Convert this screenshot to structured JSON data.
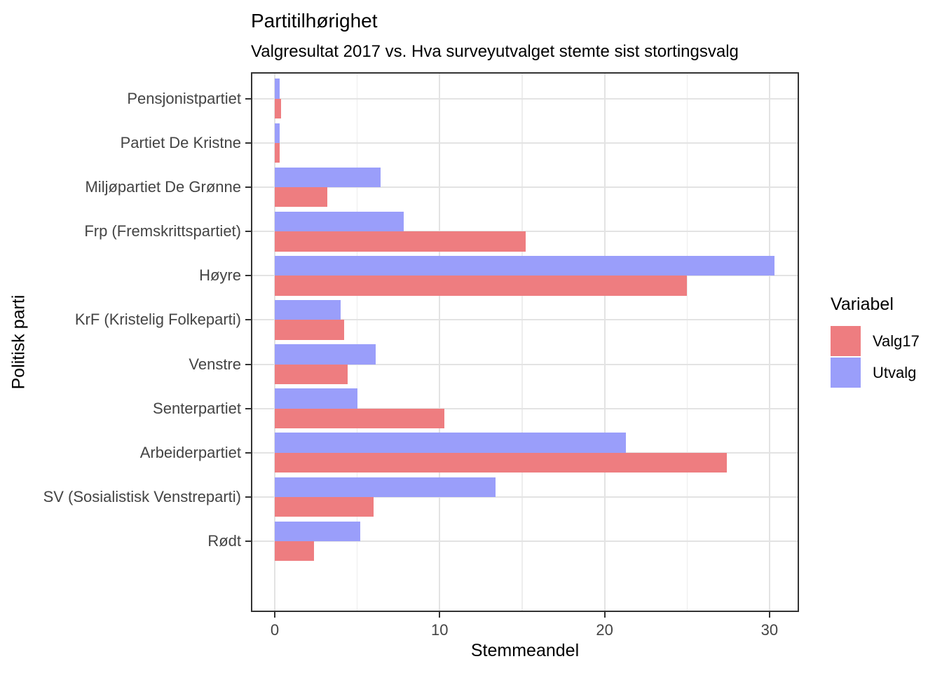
{
  "chart_data": {
    "type": "bar",
    "orientation": "horizontal",
    "title": "Partitilhørighet",
    "subtitle": "Valgresultat 2017 vs. Hva surveyutvalget stemte sist stortingsvalg",
    "xlabel": "Stemmeandel",
    "ylabel": "Politisk parti",
    "categories": [
      "Pensjonistpartiet",
      "Partiet De Kristne",
      "Miljøpartiet De Grønne",
      "Frp (Fremskrittspartiet)",
      "Høyre",
      "KrF (Kristelig Folkeparti)",
      "Venstre",
      "Senterpartiet",
      "Arbeiderpartiet",
      "SV (Sosialistisk Venstreparti)",
      "Rødt"
    ],
    "series": [
      {
        "name": "Valg17",
        "color": "#EE7D80",
        "values": [
          0.4,
          0.3,
          3.2,
          15.2,
          25.0,
          4.2,
          4.4,
          10.3,
          27.4,
          6.0,
          2.4
        ]
      },
      {
        "name": "Utvalg",
        "color": "#9A9EFA",
        "values": [
          0.3,
          0.3,
          6.4,
          7.8,
          30.3,
          4.0,
          6.1,
          5.0,
          21.3,
          13.4,
          5.2
        ]
      }
    ],
    "x_ticks": [
      0,
      10,
      20,
      30
    ],
    "x_minor_ticks": [
      5,
      15,
      25
    ],
    "xlim": [
      -1.45,
      31.8
    ],
    "grid": true,
    "legend": {
      "title": "Variabel",
      "position": "right",
      "entries": [
        "Valg17",
        "Utvalg"
      ]
    },
    "colors": {
      "valg17": "#EE7D80",
      "utvalg": "#9A9EFA",
      "grid_major": "#e3e3e3",
      "grid_minor": "#ededed",
      "panel_border": "#333333",
      "tick_label": "#444444"
    }
  }
}
